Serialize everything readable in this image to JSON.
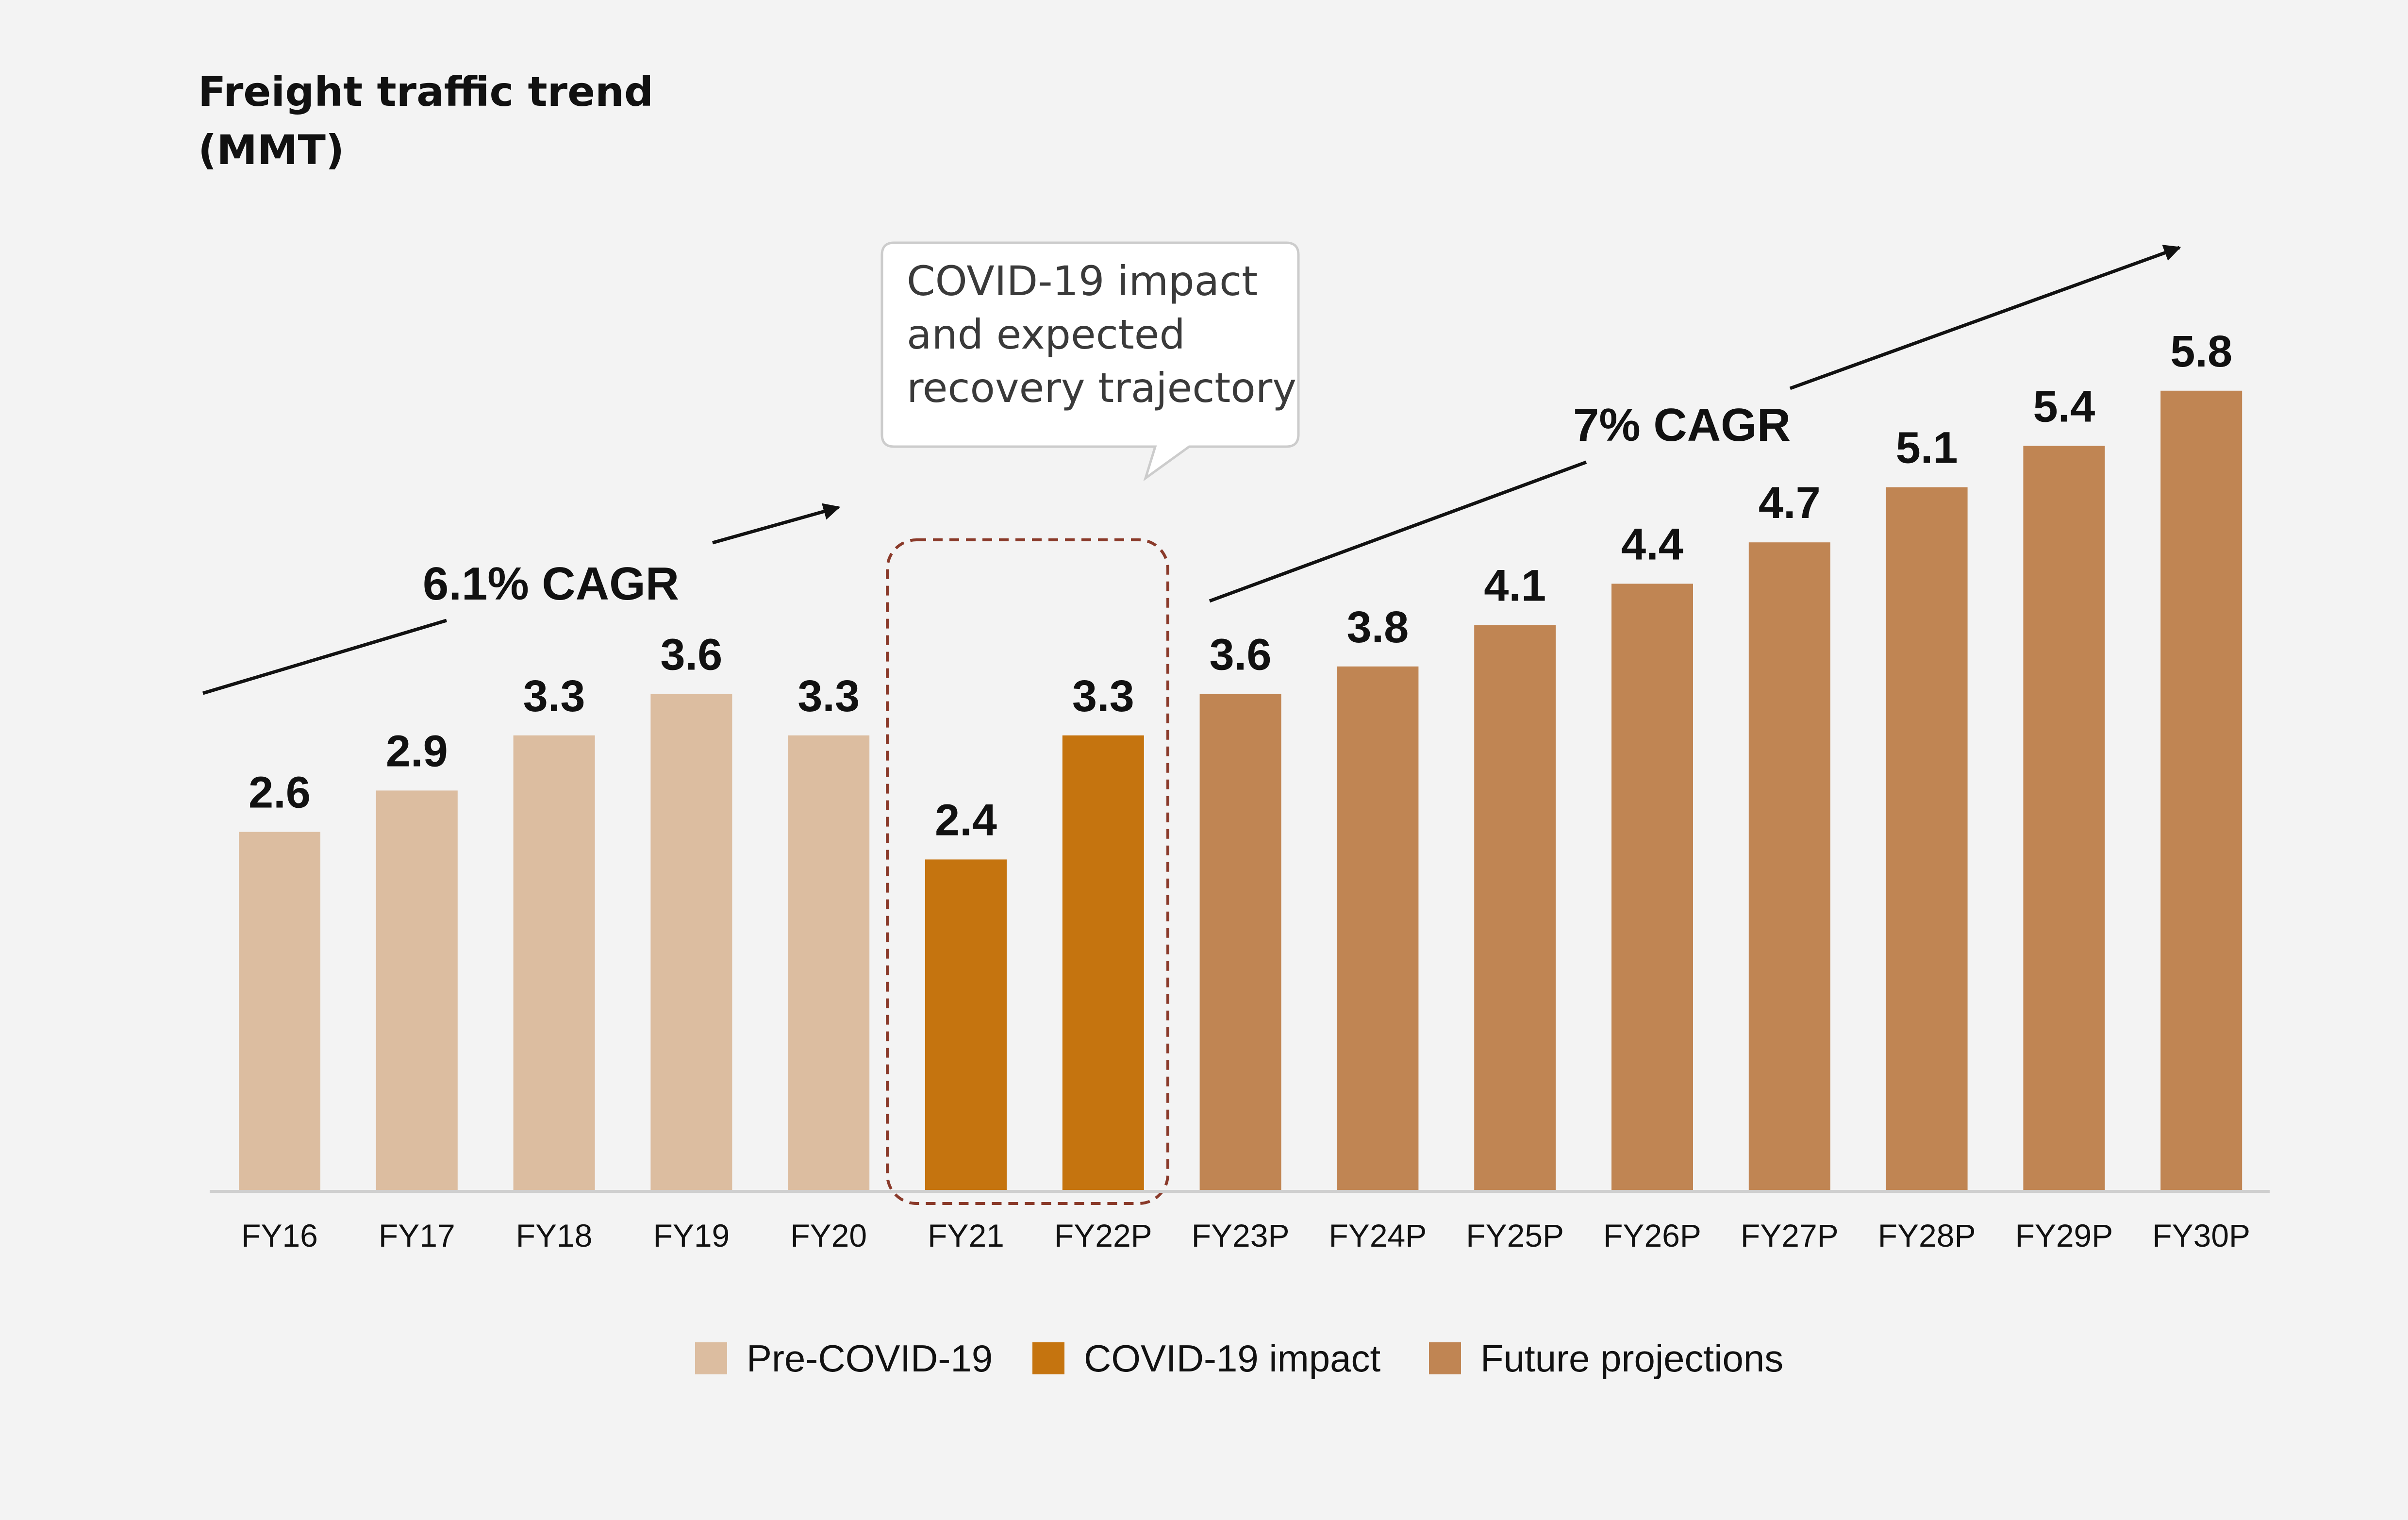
{
  "chart_data": {
    "type": "bar",
    "title": "Freight traffic trend",
    "subtitle": "(MMT)",
    "xlabel": "",
    "ylabel": "",
    "ylim": [
      0,
      5.8
    ],
    "grid": false,
    "categories": [
      "FY16",
      "FY17",
      "FY18",
      "FY19",
      "FY20",
      "FY21",
      "FY22P",
      "FY23P",
      "FY24P",
      "FY25P",
      "FY26P",
      "FY27P",
      "FY28P",
      "FY29P",
      "FY30P"
    ],
    "values": [
      2.6,
      2.9,
      3.3,
      3.6,
      3.3,
      2.4,
      3.3,
      3.6,
      3.8,
      4.1,
      4.4,
      4.7,
      5.1,
      5.4,
      5.8
    ],
    "value_labels": [
      "2.6",
      "2.9",
      "3.3",
      "3.6",
      "3.3",
      "2.4",
      "3.3",
      "3.6",
      "3.8",
      "4.1",
      "4.4",
      "4.7",
      "5.1",
      "5.4",
      "5.8"
    ],
    "groups": [
      "pre",
      "pre",
      "pre",
      "pre",
      "pre",
      "covid",
      "covid",
      "future",
      "future",
      "future",
      "future",
      "future",
      "future",
      "future",
      "future"
    ],
    "legend": {
      "placement": "bottom-center",
      "items": [
        {
          "key": "pre",
          "label": "Pre-COVID-19",
          "color": "#dcbda0"
        },
        {
          "key": "covid",
          "label": "COVID-19 impact",
          "color": "#c5740f"
        },
        {
          "key": "future",
          "label": "Future projections",
          "color": "#c08553"
        }
      ]
    },
    "annotations": {
      "cagr_left": "6.1% CAGR",
      "cagr_right": "7% CAGR",
      "callout_lines": [
        "COVID-19 impact",
        "and expected",
        "recovery trajectory"
      ]
    }
  },
  "colors": {
    "background": "#f3f3f3",
    "axis": "#cfcfcf",
    "highlight_box": "#8a3a2a",
    "text": "#111111"
  }
}
